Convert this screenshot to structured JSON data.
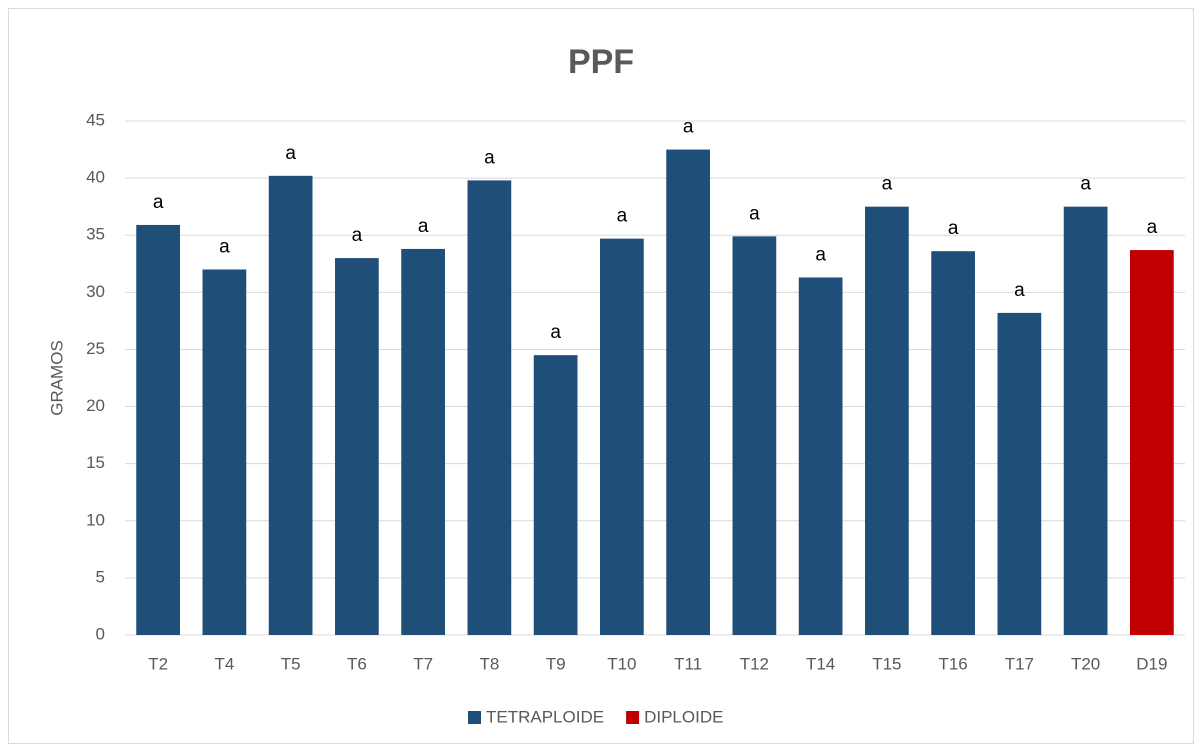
{
  "chart_data": {
    "type": "bar",
    "title": "PPF",
    "y_label": "GRAMOS",
    "categories": [
      "T2",
      "T4",
      "T5",
      "T6",
      "T7",
      "T8",
      "T9",
      "T10",
      "T11",
      "T12",
      "T14",
      "T15",
      "T16",
      "T17",
      "T20",
      "D19"
    ],
    "series": [
      {
        "name": "TETRAPLOIDE",
        "color": "#1f4e79",
        "values": [
          35.9,
          32,
          40.2,
          33,
          33.8,
          39.8,
          24.5,
          34.7,
          42.5,
          34.9,
          31.3,
          37.5,
          33.6,
          28.2,
          37.5,
          null
        ]
      },
      {
        "name": "DIPLOIDE",
        "color": "#c00000",
        "values": [
          null,
          null,
          null,
          null,
          null,
          null,
          null,
          null,
          null,
          null,
          null,
          null,
          null,
          null,
          null,
          33.7
        ]
      }
    ],
    "annotations": [
      "a",
      "a",
      "a",
      "a",
      "a",
      "a",
      "a",
      "a",
      "a",
      "a",
      "a",
      "a",
      "a",
      "a",
      "a",
      "a"
    ],
    "ylim": [
      0,
      45
    ],
    "yticks": [
      0,
      5,
      10,
      15,
      20,
      25,
      30,
      35,
      40,
      45
    ],
    "grid": true,
    "legend": "bottom"
  }
}
